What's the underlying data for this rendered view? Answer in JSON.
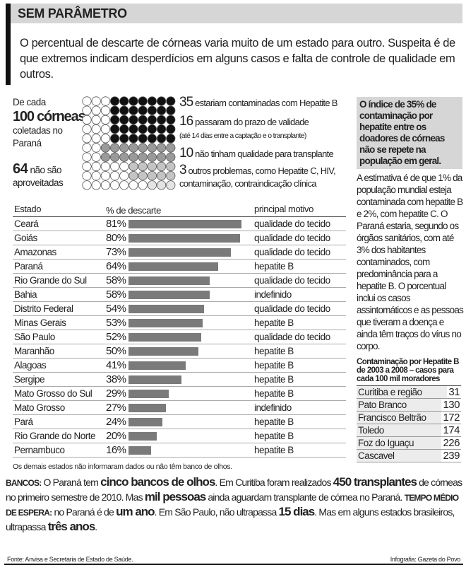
{
  "title": "SEM PARÂMETRO",
  "intro": "O percentual de descarte de córneas varia muito de um estado para outro. Suspeita é de que extremos indicam desperdícios em alguns casos e falta de controle de qualidade em outros.",
  "corneas": {
    "l1": "De cada",
    "l2": "100 córneas",
    "l3": "coletadas no",
    "l4": "Paraná",
    "n64": "64",
    "n64_text": "não são aproveitadas",
    "grid_rows": [
      [
        3,
        "w",
        7,
        "k"
      ],
      [
        3,
        "w",
        7,
        "k"
      ],
      [
        3,
        "w",
        7,
        "k"
      ],
      [
        3,
        "w",
        7,
        "k"
      ],
      [
        3,
        "w",
        7,
        "k"
      ],
      [
        2,
        "w",
        8,
        "g"
      ],
      [
        2,
        "w",
        8,
        "g"
      ],
      [
        5,
        "w",
        5,
        "l"
      ],
      [
        5,
        "w",
        5,
        "l"
      ],
      [
        7,
        "w",
        3,
        "x"
      ]
    ],
    "colors": {
      "w": "#ffffff",
      "k": "#111111",
      "g": "#9a9a9a",
      "l": "#c4c4c4",
      "x": "#e4e4e4"
    },
    "annotations": [
      {
        "n": "35",
        "text": "estariam contaminadas com Hepatite B"
      },
      {
        "n": "16",
        "text": "passaram do prazo de validade",
        "sub": "(até 14 dias entre a captação e o transplante)"
      },
      {
        "n": "10",
        "text": "não tinham qualidade para transplante"
      },
      {
        "n": "3",
        "text": "outros problemas, como Hepatite C, HIV,",
        "sub": "contaminação, contraindicação clínica"
      }
    ]
  },
  "side": {
    "highlight": "O índice de 35% de contaminação por hepatite entre os doadores de córneas não se repete na população em geral.",
    "text": "A estimativa é de que 1% da população mundial esteja contaminada com hepatite B e 2%, com hepatite C. O Paraná estaria, segundo os órgãos sanitários, com até 3% dos habitantes contaminados, com predominância para a hepatite B. O porcentual inclui os casos assintomáticos e as pessoas que tiveram a doença e ainda têm traços do vírus no corpo."
  },
  "hepatite": {
    "title": "Contaminação por Hepatite B de 2003 a 2008 – casos para cada 100 mil moradores",
    "rows": [
      [
        "Curitiba e região",
        "31"
      ],
      [
        "Pato Branco",
        "130"
      ],
      [
        "Francisco Beltrão",
        "172"
      ],
      [
        "Toledo",
        "174"
      ],
      [
        "Foz do Iguaçu",
        "226"
      ],
      [
        "Cascavel",
        "239"
      ]
    ]
  },
  "chart_data": {
    "type": "bar",
    "headers": [
      "Estado",
      "% de descarte",
      "principal motivo"
    ],
    "categories": [
      "Ceará",
      "Goiás",
      "Amazonas",
      "Paraná",
      "Rio Grande do Sul",
      "Bahia",
      "Distrito Federal",
      "Minas Gerais",
      "São Paulo",
      "Maranhão",
      "Alagoas",
      "Sergipe",
      "Mato Grosso do Sul",
      "Mato Grosso",
      "Pará",
      "Rio Grande do Norte",
      "Pernambuco"
    ],
    "values": [
      81,
      80,
      73,
      64,
      58,
      58,
      54,
      53,
      52,
      50,
      41,
      38,
      29,
      27,
      24,
      20,
      16
    ],
    "motivos": [
      "qualidade do tecido",
      "qualidade do tecido",
      "qualidade do tecido",
      "hepatite B",
      "qualidade do tecido",
      "indefinido",
      "qualidade do tecido",
      "hepatite B",
      "qualidade do tecido",
      "hepatite B",
      "hepatite B",
      "hepatite B",
      "hepatite B",
      "indefinido",
      "hepatite B",
      "hepatite B",
      "hepatite B"
    ],
    "bar_color": "#7a7a7a",
    "note": "Os demais estados não informaram dados ou não têm banco de olhos."
  },
  "bottom": {
    "k1": "BANCOS:",
    "t1": " O Paraná tem ",
    "e1": "cinco bancos de olhos",
    "t2": ". Em Curitiba foram realizados ",
    "e2": "450 transplantes",
    "t3": " de córneas no primeiro semestre de 2010. Mas ",
    "e3": "mil pessoas",
    "t4": " ainda aguardam transplante de córnea no Paraná. ",
    "k2": "TEMPO MÉDIO DE ESPERA:",
    "t5": " no Paraná é de ",
    "e4": "um ano",
    "t6": ". Em São Paulo, não ultrapassa ",
    "e5": "15 dias",
    "t7": ". Mas em alguns estados brasileiros, ultrapassa ",
    "e6": "três anos",
    "t8": "."
  },
  "source": "Fonte: Anvisa e Secretaria de Estado de Saúde.",
  "credit": "Infografia: Gazeta do Povo"
}
